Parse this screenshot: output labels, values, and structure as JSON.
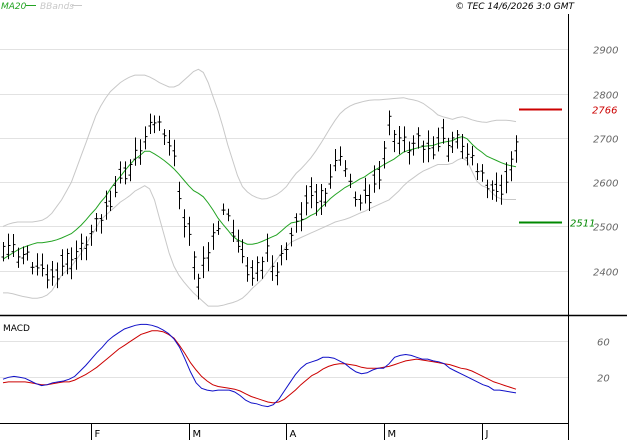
{
  "header": {
    "legend": [
      {
        "label": "MA20",
        "color": "#22a322"
      },
      {
        "label": "BBands",
        "color": "#c8c8c8"
      }
    ],
    "copyright": "© TEC 14/6/2026 3:0 GMT"
  },
  "chart_data": [
    {
      "type": "ohlc",
      "panel": "price",
      "y_ticks": [
        2400,
        2500,
        2600,
        2700,
        2800,
        2900
      ],
      "ylim": [
        2300,
        2980
      ],
      "x_labels": [
        {
          "label": "F",
          "index": 18
        },
        {
          "label": "M",
          "index": 38
        },
        {
          "label": "A",
          "index": 58
        },
        {
          "label": "M",
          "index": 78
        },
        {
          "label": "J",
          "index": 98
        }
      ],
      "n_days": 106,
      "series": [
        {
          "name": "MA20",
          "values": [
            2426,
            2433,
            2440,
            2447,
            2452,
            2456,
            2460,
            2463,
            2463,
            2465,
            2467,
            2470,
            2474,
            2479,
            2484,
            2493,
            2503,
            2515,
            2528,
            2540,
            2555,
            2568,
            2585,
            2600,
            2613,
            2627,
            2640,
            2652,
            2660,
            2670,
            2670,
            2664,
            2657,
            2649,
            2640,
            2630,
            2618,
            2605,
            2592,
            2581,
            2575,
            2567,
            2553,
            2537,
            2519,
            2505,
            2492,
            2478,
            2470,
            2465,
            2460,
            2460,
            2462,
            2466,
            2471,
            2476,
            2481,
            2490,
            2500,
            2508,
            2510,
            2513,
            2518,
            2525,
            2530,
            2542,
            2552,
            2563,
            2572,
            2580,
            2588,
            2594,
            2600,
            2607,
            2612,
            2620,
            2627,
            2633,
            2640,
            2646,
            2652,
            2660,
            2668,
            2672,
            2675,
            2678,
            2681,
            2682,
            2683,
            2687,
            2690,
            2692,
            2694,
            2700,
            2703,
            2698,
            2686,
            2676,
            2668,
            2659,
            2654,
            2649,
            2644,
            2640,
            2637,
            2635
          ]
        },
        {
          "name": "BB Upper",
          "values": [
            2500,
            2505,
            2508,
            2510,
            2510,
            2510,
            2510,
            2512,
            2514,
            2520,
            2530,
            2545,
            2560,
            2580,
            2600,
            2630,
            2660,
            2690,
            2720,
            2750,
            2772,
            2790,
            2805,
            2815,
            2825,
            2832,
            2838,
            2842,
            2842,
            2842,
            2838,
            2832,
            2825,
            2820,
            2815,
            2815,
            2820,
            2830,
            2840,
            2850,
            2855,
            2848,
            2825,
            2793,
            2762,
            2725,
            2685,
            2650,
            2615,
            2590,
            2578,
            2570,
            2565,
            2562,
            2563,
            2567,
            2572,
            2580,
            2590,
            2606,
            2620,
            2630,
            2642,
            2655,
            2670,
            2687,
            2705,
            2723,
            2740,
            2755,
            2765,
            2772,
            2777,
            2780,
            2783,
            2785,
            2786,
            2786,
            2787,
            2788,
            2789,
            2790,
            2791,
            2788,
            2786,
            2783,
            2778,
            2770,
            2762,
            2752,
            2748,
            2745,
            2742,
            2746,
            2748,
            2745,
            2741,
            2738,
            2736,
            2735,
            2738,
            2740,
            2740,
            2740,
            2739,
            2737
          ]
        },
        {
          "name": "BB Lower",
          "values": [
            2350,
            2350,
            2348,
            2345,
            2342,
            2340,
            2338,
            2338,
            2340,
            2345,
            2355,
            2372,
            2390,
            2400,
            2410,
            2425,
            2440,
            2460,
            2478,
            2495,
            2515,
            2525,
            2535,
            2545,
            2555,
            2562,
            2570,
            2580,
            2586,
            2592,
            2585,
            2560,
            2520,
            2480,
            2440,
            2410,
            2390,
            2375,
            2362,
            2350,
            2340,
            2330,
            2320,
            2320,
            2320,
            2322,
            2325,
            2328,
            2332,
            2338,
            2348,
            2360,
            2370,
            2380,
            2395,
            2410,
            2425,
            2440,
            2455,
            2465,
            2470,
            2475,
            2480,
            2485,
            2490,
            2495,
            2500,
            2505,
            2510,
            2513,
            2516,
            2520,
            2525,
            2530,
            2534,
            2540,
            2545,
            2550,
            2555,
            2560,
            2570,
            2580,
            2592,
            2602,
            2610,
            2618,
            2625,
            2630,
            2635,
            2640,
            2640,
            2640,
            2643,
            2650,
            2655,
            2648,
            2625,
            2602,
            2592,
            2588,
            2577,
            2567,
            2562,
            2561,
            2561,
            2561
          ]
        }
      ]
    },
    {
      "type": "line",
      "panel": "macd",
      "title": "MACD",
      "y_ticks": [
        20,
        60
      ],
      "y_tick_labels": [
        "20",
        "60"
      ],
      "ylim": [
        -30,
        85
      ],
      "series": [
        {
          "name": "MACD",
          "values": [
            18,
            20,
            21,
            20,
            19,
            16,
            13,
            11,
            12,
            14,
            15,
            16,
            18,
            21,
            27,
            33,
            40,
            47,
            53,
            60,
            65,
            69,
            73,
            75,
            77,
            78,
            78,
            77,
            75,
            72,
            68,
            62,
            53,
            40,
            26,
            14,
            8,
            6,
            5,
            6,
            6,
            6,
            4,
            0,
            -5,
            -8,
            -9,
            -11,
            -12,
            -10,
            -4,
            5,
            14,
            23,
            30,
            35,
            37,
            39,
            42,
            42,
            41,
            38,
            35,
            30,
            26,
            24,
            25,
            28,
            30,
            30,
            35,
            42,
            44,
            45,
            44,
            42,
            40,
            40,
            38,
            37,
            35,
            30,
            27,
            24,
            21,
            18,
            15,
            12,
            10,
            6,
            6,
            5,
            4,
            3
          ]
        },
        {
          "name": "Signal",
          "values": [
            14,
            15,
            15,
            15,
            15,
            14,
            13,
            12,
            12,
            13,
            14,
            15,
            15,
            17,
            20,
            23,
            27,
            31,
            36,
            41,
            46,
            51,
            55,
            59,
            63,
            67,
            69,
            71,
            71,
            70,
            67,
            63,
            55,
            46,
            36,
            28,
            21,
            16,
            12,
            10,
            9,
            8,
            7,
            5,
            2,
            -1,
            -3,
            -5,
            -7,
            -8,
            -7,
            -4,
            1,
            6,
            12,
            17,
            22,
            25,
            29,
            32,
            34,
            35,
            35,
            34,
            33,
            31,
            30,
            30,
            30,
            31,
            32,
            34,
            36,
            38,
            39,
            40,
            39,
            38,
            37,
            36,
            35,
            34,
            32,
            30,
            29,
            27,
            24,
            21,
            18,
            15,
            13,
            11,
            9,
            7
          ]
        }
      ]
    }
  ],
  "price_labels": [
    {
      "value": 2766,
      "text": "2766",
      "color": "#cc0000"
    },
    {
      "value": 2511,
      "text": "2511",
      "color": "#008800"
    }
  ]
}
